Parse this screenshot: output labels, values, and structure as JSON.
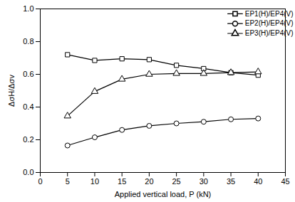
{
  "chart_data": {
    "type": "line",
    "x_label": "Applied vertical load, P (kN)",
    "y_label": "ΔσH/Δσv",
    "x": [
      5,
      10,
      15,
      20,
      25,
      30,
      35,
      40
    ],
    "series": [
      {
        "name": "EP1(H)/EP4(V)",
        "color": "#000000",
        "marker": "square",
        "line_style": "solid",
        "values": [
          0.72,
          0.685,
          0.695,
          0.69,
          0.655,
          0.635,
          0.61,
          0.595
        ]
      },
      {
        "name": "EP2(H)/EP4(V)",
        "color": "#000000",
        "marker": "circle",
        "line_style": "solid",
        "values": [
          0.165,
          0.215,
          0.26,
          0.285,
          0.3,
          0.31,
          0.325,
          0.33
        ]
      },
      {
        "name": "EP3(H)/EP4(V)",
        "color": "#000000",
        "marker": "triangle",
        "line_style": "solid",
        "values": [
          0.345,
          0.495,
          0.57,
          0.6,
          0.605,
          0.605,
          0.61,
          0.615
        ]
      }
    ],
    "xlim": [
      0,
      45
    ],
    "xticks": [
      0,
      5,
      10,
      15,
      20,
      25,
      30,
      35,
      40,
      45
    ],
    "ylim": [
      0,
      1
    ],
    "yticks": [
      {
        "value": 0,
        "label": "0.0"
      },
      0.2,
      0.4,
      0.6,
      0.8,
      {
        "value": 1,
        "label": "1.0"
      }
    ],
    "grid": false,
    "legend": "top-right"
  }
}
